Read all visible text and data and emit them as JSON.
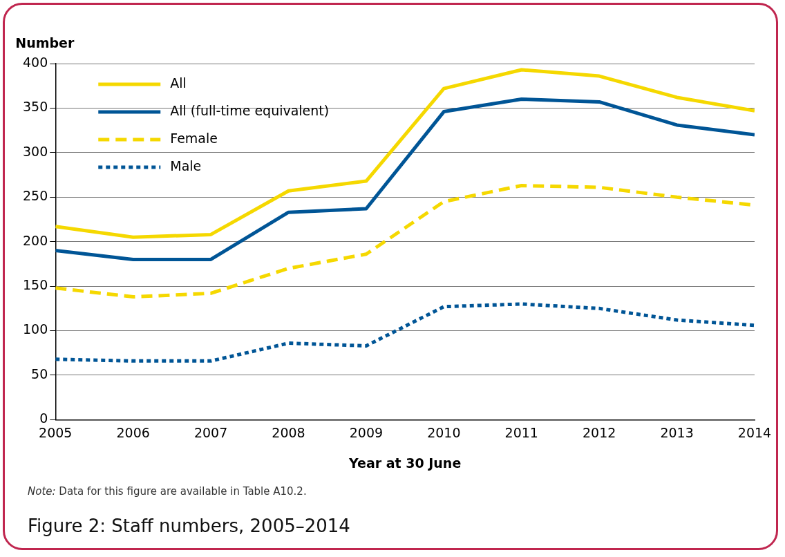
{
  "chart_data": {
    "type": "line",
    "title": "Figure 2: Staff numbers, 2005–2014",
    "xlabel": "Year at 30 June",
    "ylabel": "Number",
    "annotations": [
      "Note: Data for this figure are available in Table A10.2."
    ],
    "x": [
      2005,
      2006,
      2007,
      2008,
      2009,
      2010,
      2011,
      2012,
      2013,
      2014
    ],
    "series": [
      {
        "name": "All",
        "color": "#f5d800",
        "line_style": "solid",
        "values": [
          217,
          205,
          208,
          257,
          268,
          372,
          393,
          386,
          362,
          347
        ]
      },
      {
        "name": "All (full-time equivalent)",
        "color": "#005596",
        "line_style": "solid",
        "values": [
          190,
          180,
          180,
          233,
          237,
          346,
          360,
          357,
          331,
          320
        ]
      },
      {
        "name": "Female",
        "color": "#f5d800",
        "line_style": "dashed",
        "values": [
          148,
          138,
          142,
          170,
          186,
          245,
          263,
          261,
          250,
          241
        ]
      },
      {
        "name": "Male",
        "color": "#005596",
        "line_style": "dotted",
        "values": [
          68,
          66,
          66,
          86,
          83,
          127,
          130,
          125,
          112,
          106
        ]
      }
    ],
    "xlim": [
      2005,
      2014
    ],
    "xticks": [
      2005,
      2006,
      2007,
      2008,
      2009,
      2010,
      2011,
      2012,
      2013,
      2014
    ],
    "ylim": [
      0,
      400
    ],
    "yticks": [
      0,
      50,
      100,
      150,
      200,
      250,
      300,
      350,
      400
    ],
    "grid": "y",
    "legend": "top left",
    "marker": "none"
  }
}
